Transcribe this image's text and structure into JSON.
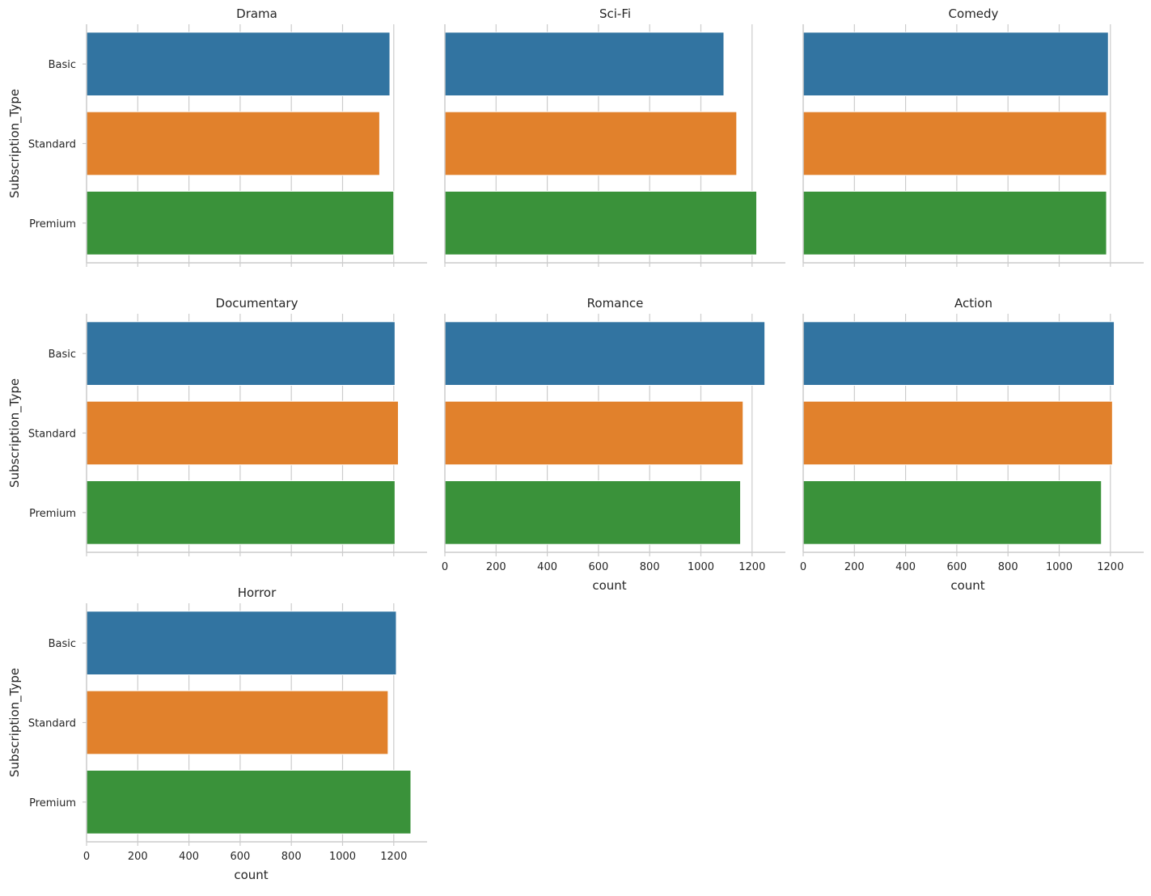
{
  "chart_data": {
    "type": "bar",
    "orientation": "horizontal",
    "layout": "facet-grid",
    "xlabel": "count",
    "ylabel": "Subscription_Type",
    "xlim": [
      0,
      1330
    ],
    "xticks": [
      0,
      200,
      400,
      600,
      800,
      1000,
      1200
    ],
    "categories": [
      "Basic",
      "Standard",
      "Premium"
    ],
    "category_colors": [
      "#3274a1",
      "#e1812c",
      "#3a923a"
    ],
    "grid": true,
    "facets": [
      {
        "title": "Drama",
        "values": [
          1185,
          1145,
          1200
        ]
      },
      {
        "title": "Sci-Fi",
        "values": [
          1090,
          1140,
          1218
        ]
      },
      {
        "title": "Comedy",
        "values": [
          1192,
          1185,
          1185
        ]
      },
      {
        "title": "Documentary",
        "values": [
          1205,
          1218,
          1205
        ]
      },
      {
        "title": "Romance",
        "values": [
          1250,
          1165,
          1155
        ]
      },
      {
        "title": "Action",
        "values": [
          1215,
          1208,
          1165
        ]
      },
      {
        "title": "Horror",
        "values": [
          1210,
          1178,
          1267
        ]
      }
    ]
  }
}
